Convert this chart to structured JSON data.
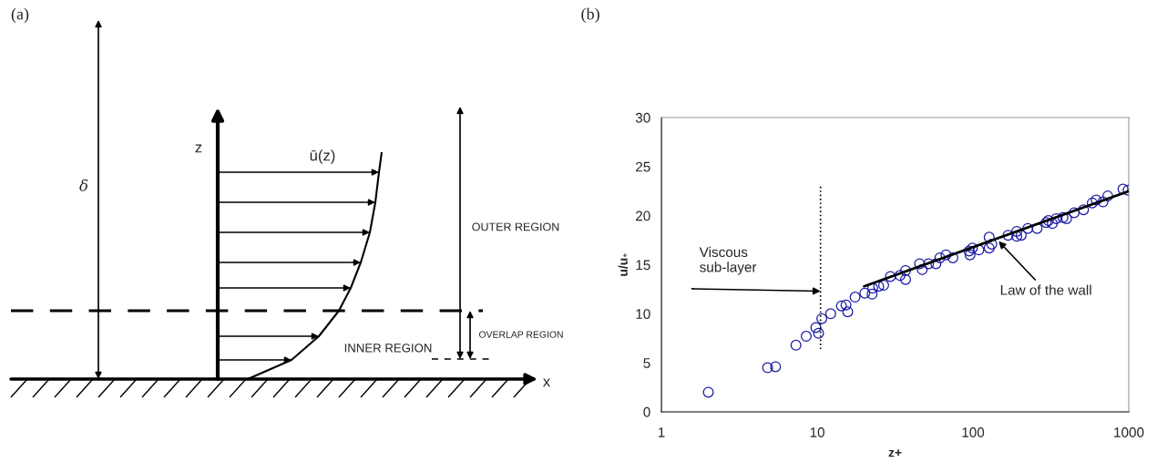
{
  "chart_data": [
    {
      "type": "other",
      "title": "(a)",
      "annotations": [
        "z",
        "ū(z)",
        "δ",
        "OUTER REGION",
        "OVERLAP REGION",
        "INNER REGION",
        "x"
      ]
    },
    {
      "type": "scatter",
      "title": "(b)",
      "xlabel": "z+",
      "ylabel": "u/u$_{*}$",
      "log": "x",
      "xlim": [
        1,
        1000
      ],
      "xticks": [
        1,
        10,
        100,
        1000
      ],
      "ylim": [
        0,
        30
      ],
      "yticks": [
        0,
        5,
        10,
        15,
        20,
        25,
        30
      ],
      "grid": false,
      "legend": false,
      "annotations": [
        {
          "text": "Viscous\nsub-layer",
          "x": 10.5,
          "y": 12.3
        },
        {
          "text": "Law of the wall",
          "x": 146,
          "y": 17.4
        }
      ],
      "series": [
        {
          "type": "scatter",
          "color": "#1a1aa6",
          "marker": "circle",
          "x": [
            2.0,
            4.8,
            5.4,
            7.3,
            8.5,
            9.8,
            10.2,
            10.7,
            12.2,
            14.3,
            15.3,
            15.7,
            17.5,
            20.2,
            22.5,
            22.7,
            24.8,
            26.7,
            29.5,
            34,
            36.9,
            36.9,
            45.4,
            47.2,
            51.9,
            57.8,
            61.3,
            67.1,
            74.3,
            94.4,
            95.7,
            99.1,
            109,
            127,
            127,
            132,
            168,
            191,
            191,
            204,
            225,
            258,
            295,
            305,
            323,
            342,
            378,
            399,
            446,
            512,
            583,
            618,
            683,
            733,
            918,
            990
          ],
          "values": [
            2.0,
            4.5,
            4.6,
            6.8,
            7.7,
            8.6,
            8.0,
            9.5,
            10.0,
            10.8,
            10.9,
            10.2,
            11.7,
            12.1,
            12.0,
            12.6,
            12.8,
            12.9,
            13.8,
            13.9,
            14.4,
            13.5,
            15.1,
            14.5,
            15.1,
            15.1,
            15.7,
            16.0,
            15.7,
            16.4,
            16.0,
            16.7,
            16.5,
            17.8,
            16.7,
            17.1,
            18.0,
            18.4,
            17.9,
            18.0,
            18.7,
            18.7,
            19.3,
            19.5,
            19.2,
            19.7,
            19.8,
            19.7,
            20.3,
            20.6,
            21.3,
            21.6,
            21.4,
            22.0,
            22.7,
            22.6
          ]
        },
        {
          "type": "line",
          "color": "#000000",
          "x": [
            20,
            1000
          ],
          "values": [
            12.8,
            22.5
          ],
          "line_style": "solid"
        },
        {
          "type": "line",
          "color": "#000000",
          "x": [
            10.5,
            10.5
          ],
          "values": [
            6.4,
            23.2
          ],
          "line_style": "dotted"
        }
      ]
    }
  ]
}
